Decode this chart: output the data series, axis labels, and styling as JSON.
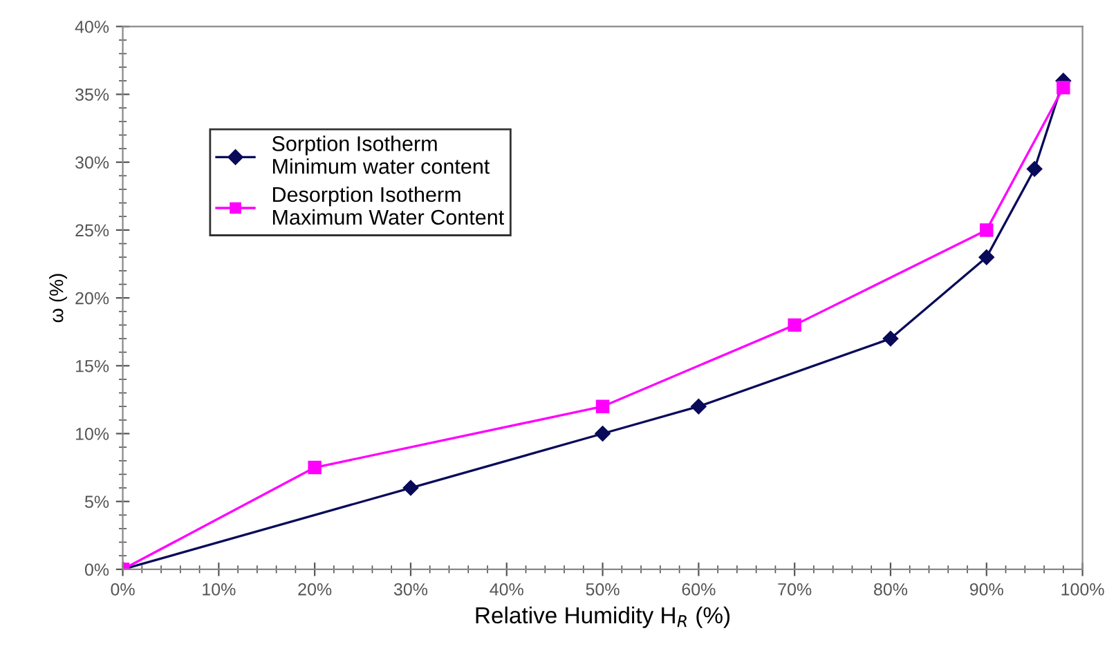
{
  "chart_data": {
    "type": "line",
    "xlabel": "Relative Humidity H$_{R}$ (%)",
    "ylabel": "ω (%)",
    "xlim": [
      0,
      100
    ],
    "ylim": [
      0,
      40
    ],
    "xticks": [
      {
        "value": 0,
        "label": "0%"
      },
      {
        "value": 10,
        "label": "10%"
      },
      {
        "value": 20,
        "label": "20%"
      },
      {
        "value": 30,
        "label": "30%"
      },
      {
        "value": 40,
        "label": "40%"
      },
      {
        "value": 50,
        "label": "50%"
      },
      {
        "value": 60,
        "label": "60%"
      },
      {
        "value": 70,
        "label": "70%"
      },
      {
        "value": 80,
        "label": "80%"
      },
      {
        "value": 90,
        "label": "90%"
      },
      {
        "value": 100,
        "label": "100%"
      }
    ],
    "yticks": [
      {
        "value": 0,
        "label": "0%"
      },
      {
        "value": 5,
        "label": "5%"
      },
      {
        "value": 10,
        "label": "10%"
      },
      {
        "value": 15,
        "label": "15%"
      },
      {
        "value": 20,
        "label": "20%"
      },
      {
        "value": 25,
        "label": "25%"
      },
      {
        "value": 30,
        "label": "30%"
      },
      {
        "value": 35,
        "label": "35%"
      },
      {
        "value": 40,
        "label": "40%"
      }
    ],
    "grid": false,
    "legend": "top left",
    "series": [
      {
        "name": "Sorption Isotherm\nMinimum water content",
        "color": "#0a0a5a",
        "marker": "diamond",
        "x": [
          0,
          30,
          50,
          60,
          80,
          90,
          95,
          98
        ],
        "values": [
          0,
          6,
          10,
          12,
          17,
          23,
          29.5,
          36
        ]
      },
      {
        "name": "Desorption Isotherm\nMaximum Water Content",
        "color": "#ff00ff",
        "marker": "square",
        "x": [
          0,
          20,
          50,
          70,
          90,
          98
        ],
        "values": [
          0,
          7.5,
          12,
          18,
          25,
          35.5
        ]
      }
    ]
  }
}
